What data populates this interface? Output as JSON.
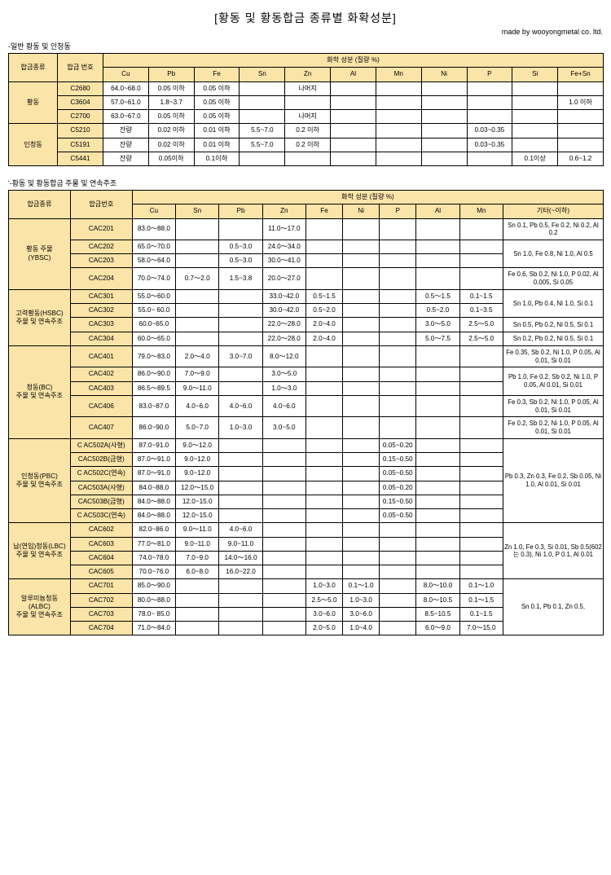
{
  "title": "[황동 및 황동합금 종류별 화확성분]",
  "made_by": "made by wooyongmetal co. ltd.",
  "section1": {
    "label": "-일반 황동 및 인청동",
    "header_group": "화학 성분 (질량 %)",
    "col_group": "합금종류",
    "col_num": "합금 번호",
    "cols": [
      "Cu",
      "Pb",
      "Fe",
      "Sn",
      "Zn",
      "Al",
      "Mn",
      "Ni",
      "P",
      "Si",
      "Fe+Sn"
    ],
    "groups": [
      {
        "name": "황동",
        "rows": [
          {
            "num": "C2680",
            "Cu": "64.0~68.0",
            "Pb": "0.05 이하",
            "Fe": "0.05 이하",
            "Sn": "",
            "Zn": "나머지",
            "Al": "",
            "Mn": "",
            "Ni": "",
            "P": "",
            "Si": "",
            "FeSn": ""
          },
          {
            "num": "C3604",
            "Cu": "57.0~61.0",
            "Pb": "1.8~3.7",
            "Fe": "0.05 이하",
            "Sn": "",
            "Zn": "",
            "Al": "",
            "Mn": "",
            "Ni": "",
            "P": "",
            "Si": "",
            "FeSn": "1.0 이하"
          },
          {
            "num": "C2700",
            "Cu": "63.0~67.0",
            "Pb": "0.05 이하",
            "Fe": "0.05 이하",
            "Sn": "",
            "Zn": "나머지",
            "Al": "",
            "Mn": "",
            "Ni": "",
            "P": "",
            "Si": "",
            "FeSn": ""
          }
        ]
      },
      {
        "name": "인청동",
        "rows": [
          {
            "num": "C5210",
            "Cu": "잔량",
            "Pb": "0.02 이하",
            "Fe": "0.01 이하",
            "Sn": "5.5~7.0",
            "Zn": "0.2 이하",
            "Al": "",
            "Mn": "",
            "Ni": "",
            "P": "0.03~0.35",
            "Si": "",
            "FeSn": ""
          },
          {
            "num": "C5191",
            "Cu": "잔량",
            "Pb": "0.02 이하",
            "Fe": "0.01 이하",
            "Sn": "5.5~7.0",
            "Zn": "0.2 이하",
            "Al": "",
            "Mn": "",
            "Ni": "",
            "P": "0.03~0.35",
            "Si": "",
            "FeSn": ""
          },
          {
            "num": "C5441",
            "Cu": "잔량",
            "Pb": "0.05이하",
            "Fe": "0.1이하",
            "Sn": "",
            "Zn": "",
            "Al": "",
            "Mn": "",
            "Ni": "",
            "P": "",
            "Si": "0.1이상",
            "FeSn": "0.6~1.2"
          }
        ]
      }
    ]
  },
  "section2": {
    "label": "'-황동 및 황동합금 주물 및 연속주조",
    "header_group": "화학 성분 (질량 %)",
    "col_group": "합금종류",
    "col_num": "합금번호",
    "cols": [
      "Cu",
      "Sn",
      "Pb",
      "Zn",
      "Fe",
      "Ni",
      "P",
      "Al",
      "Mn",
      "기타(~이하)"
    ],
    "groups": [
      {
        "name": "황동 주물\n(YBSC)",
        "rows": [
          {
            "num": "CAC201",
            "Cu": "83.0～88.0",
            "Sn": "",
            "Pb": "",
            "Zn": "11.0～17.0",
            "Fe": "",
            "Ni": "",
            "P": "",
            "Al": "",
            "Mn": "",
            "etc": "Sn 0.1, Pb 0.5, Fe 0.2, Ni 0.2, Al 0.2",
            "mergeEtc": 1
          },
          {
            "num": "CAC202",
            "Cu": "65.0～70.0",
            "Sn": "",
            "Pb": "0.5~3.0",
            "Zn": "24.0～34.0",
            "Fe": "",
            "Ni": "",
            "P": "",
            "Al": "",
            "Mn": "",
            "etc": "Sn 1.0, Fe 0.8, Ni 1.0, Al 0.5",
            "mergeEtc": 2
          },
          {
            "num": "CAC203",
            "Cu": "58.0～64.0",
            "Sn": "",
            "Pb": "0.5~3.0",
            "Zn": "30.0～41.0",
            "Fe": "",
            "Ni": "",
            "P": "",
            "Al": "",
            "Mn": ""
          },
          {
            "num": "CAC204",
            "Cu": "70.0～74.0",
            "Sn": "0.7～2.0",
            "Pb": "1.5~3.8",
            "Zn": "20.0～27.0",
            "Fe": "",
            "Ni": "",
            "P": "",
            "Al": "",
            "Mn": "",
            "etc": "Fe 0.6, Sb 0.2, Ni 1.0, P 0.02, Al 0.005, Si 0.05",
            "mergeEtc": 1
          }
        ]
      },
      {
        "name": "고력황동(HSBC)\n주물 및 연속주조",
        "rows": [
          {
            "num": "CAC301",
            "Cu": "55.0～60.0",
            "Sn": "",
            "Pb": "",
            "Zn": "33.0~42.0",
            "Fe": "0.5~1.5",
            "Ni": "",
            "P": "",
            "Al": "0.5～1.5",
            "Mn": "0.1~1.5",
            "etc": "Sn 1.0, Pb 0.4, Ni 1.0, Si 0.1",
            "mergeEtc": 2
          },
          {
            "num": "CAC302",
            "Cu": "55.0~ 60.0",
            "Sn": "",
            "Pb": "",
            "Zn": "30.0~42.0",
            "Fe": "0.5~2.0",
            "Ni": "",
            "P": "",
            "Al": "0.5~2.0",
            "Mn": "0.1~3.5"
          },
          {
            "num": "CAC303",
            "Cu": "60.0~65.0",
            "Sn": "",
            "Pb": "",
            "Zn": "22.0～28.0",
            "Fe": "2.0~4.0",
            "Ni": "",
            "P": "",
            "Al": "3.0～5.0",
            "Mn": "2.5～5.0",
            "etc": "Sn 0.5, Pb 0.2, Ni 0.5, Si 0.1",
            "mergeEtc": 1
          },
          {
            "num": "CAC304",
            "Cu": "60.0～65.0",
            "Sn": "",
            "Pb": "",
            "Zn": "22.0～28.0",
            "Fe": "2.0~4.0",
            "Ni": "",
            "P": "",
            "Al": "5.0～7.5",
            "Mn": "2.5～5.0",
            "etc": "Sn 0.2, Pb 0.2, Ni 0.5, Si 0.1",
            "mergeEtc": 1
          }
        ]
      },
      {
        "name": "청동(BC)\n주물 및 연속주조",
        "rows": [
          {
            "num": "CAC401",
            "Cu": "79.0～83.0",
            "Sn": "2.0～4.0",
            "Pb": "3.0~7.0",
            "Zn": "8.0～12.0",
            "Fe": "",
            "Ni": "",
            "P": "",
            "Al": "",
            "Mn": "",
            "etc": "Fe 0.35, Sb 0.2, Ni 1.0, P 0.05, Al 0.01, Si 0.01",
            "mergeEtc": 1
          },
          {
            "num": "CAC402",
            "Cu": "86.0～90.0",
            "Sn": "7.0～9.0",
            "Pb": "",
            "Zn": "3.0～5.0",
            "Fe": "",
            "Ni": "",
            "P": "",
            "Al": "",
            "Mn": "",
            "etc": "Pb 1.0, Fe 0.2, Sb 0.2, Ni 1.0, P 0.05, Al 0.01, Si 0.01",
            "mergeEtc": 2
          },
          {
            "num": "CAC403",
            "Cu": "86.5～89.5",
            "Sn": "9.0～11.0",
            "Pb": "",
            "Zn": "1.0～3.0",
            "Fe": "",
            "Ni": "",
            "P": "",
            "Al": "",
            "Mn": ""
          },
          {
            "num": "CAC406",
            "Cu": "83.0~87.0",
            "Sn": "4.0~6.0",
            "Pb": "4.0~6.0",
            "Zn": "4.0~6.0",
            "Fe": "",
            "Ni": "",
            "P": "",
            "Al": "",
            "Mn": "",
            "etc": "Fe 0.3, Sb 0.2, Ni 1.0, P 0.05, Al 0.01, Si 0.01",
            "mergeEtc": 1
          },
          {
            "num": "CAC407",
            "Cu": "86.0~90.0",
            "Sn": "5.0~7.0",
            "Pb": "1.0~3.0",
            "Zn": "3.0~5.0",
            "Fe": "",
            "Ni": "",
            "P": "",
            "Al": "",
            "Mn": "",
            "etc": "Fe 0.2, Sb 0.2, Ni 1.0, P 0.05, Al 0.01, Si 0.01",
            "mergeEtc": 1
          }
        ]
      },
      {
        "name": "인청동(PBC)\n주물 및 연속주조",
        "rows": [
          {
            "num": "C AC502A(사형)",
            "Cu": "87.0~91.0",
            "Sn": "9.0～12.0",
            "Pb": "",
            "Zn": "",
            "Fe": "",
            "Ni": "",
            "P": "0.05~0.20",
            "Al": "",
            "Mn": "",
            "etc": "Pb 0.3, Zn 0.3, Fe 0.2, Sb 0.05, Ni 1.0, Al 0.01, Si 0.01",
            "mergeEtc": 6
          },
          {
            "num": "CAC502B(금형)",
            "Cu": "87.0～91.0",
            "Sn": "9.0~12.0",
            "Pb": "",
            "Zn": "",
            "Fe": "",
            "Ni": "",
            "P": "0.15~0.50",
            "Al": "",
            "Mn": ""
          },
          {
            "num": "C AC502C(연속)",
            "Cu": "87.0～91.0",
            "Sn": "9.0~12.0",
            "Pb": "",
            "Zn": "",
            "Fe": "",
            "Ni": "",
            "P": "0.05~0.50",
            "Al": "",
            "Mn": ""
          },
          {
            "num": "CAC503A(사형)",
            "Cu": "84.0~88.0",
            "Sn": "12.0～15.0",
            "Pb": "",
            "Zn": "",
            "Fe": "",
            "Ni": "",
            "P": "0.05~0.20",
            "Al": "",
            "Mn": ""
          },
          {
            "num": "CAC503B(금형)",
            "Cu": "84.0～88.0",
            "Sn": "12.0~15.0",
            "Pb": "",
            "Zn": "",
            "Fe": "",
            "Ni": "",
            "P": "0.15~0.50",
            "Al": "",
            "Mn": ""
          },
          {
            "num": "C AC503C(연속)",
            "Cu": "84.0～88.0",
            "Sn": "12.0~15.0",
            "Pb": "",
            "Zn": "",
            "Fe": "",
            "Ni": "",
            "P": "0.05~0.50",
            "Al": "",
            "Mn": ""
          }
        ]
      },
      {
        "name": "납(연입)청동(LBC)\n주물 및 연속주조",
        "rows": [
          {
            "num": "CAC602",
            "Cu": "82.0~86.0",
            "Sn": "9.0～11.0",
            "Pb": "4.0~6.0",
            "Zn": "",
            "Fe": "",
            "Ni": "",
            "P": "",
            "Al": "",
            "Mn": "",
            "etc": "Zn 1.0, Fe 0.3, Si 0.01, Sb 0.5(602는 0.3), Ni 1.0, P 0.1, Al 0.01",
            "mergeEtc": 4
          },
          {
            "num": "CAC603",
            "Cu": "77.0～81.0",
            "Sn": "9.0~11.0",
            "Pb": "9.0~11.0",
            "Zn": "",
            "Fe": "",
            "Ni": "",
            "P": "",
            "Al": "",
            "Mn": ""
          },
          {
            "num": "CAC604",
            "Cu": "74.0~78.0",
            "Sn": "7.0~9.0",
            "Pb": "14.0～16.0",
            "Zn": "",
            "Fe": "",
            "Ni": "",
            "P": "",
            "Al": "",
            "Mn": ""
          },
          {
            "num": "CAC605",
            "Cu": "70.0~76.0",
            "Sn": "6.0~8.0",
            "Pb": "16.0~22.0",
            "Zn": "",
            "Fe": "",
            "Ni": "",
            "P": "",
            "Al": "",
            "Mn": ""
          }
        ]
      },
      {
        "name": "알루미늄청동\n(ALBC)\n주물 및 연속주조",
        "rows": [
          {
            "num": "CAC701",
            "Cu": "85.0～90.0",
            "Sn": "",
            "Pb": "",
            "Zn": "",
            "Fe": "1.0~3.0",
            "Ni": "0.1～1.0",
            "P": "",
            "Al": "8,0～10.0",
            "Mn": "0.1～1.0",
            "etc": "Sn 0.1, Pb 0.1, Zn 0.5,",
            "mergeEtc": 4
          },
          {
            "num": "CAC702",
            "Cu": "80.0～88.0",
            "Sn": "",
            "Pb": "",
            "Zn": "",
            "Fe": "2.5～5.0",
            "Ni": "1.0~3.0",
            "P": "",
            "Al": "8.0～10.5",
            "Mn": "0.1～1.5"
          },
          {
            "num": "CAC703",
            "Cu": "78.0~ 85.0",
            "Sn": "",
            "Pb": "",
            "Zn": "",
            "Fe": "3.0~6.0",
            "Ni": "3.0~6.0",
            "P": "",
            "Al": "8.5~10.5",
            "Mn": "0.1~1.5"
          },
          {
            "num": "CAC704",
            "Cu": "71.0～84.0",
            "Sn": "",
            "Pb": "",
            "Zn": "",
            "Fe": "2.0~5.0",
            "Ni": "1.0~4.0",
            "P": "",
            "Al": "6.0～9.0",
            "Mn": "7.0～15.0"
          }
        ]
      }
    ]
  },
  "colors": {
    "header_bg": "#fbe4a8",
    "border": "#000000",
    "page_bg": "#ffffff"
  }
}
